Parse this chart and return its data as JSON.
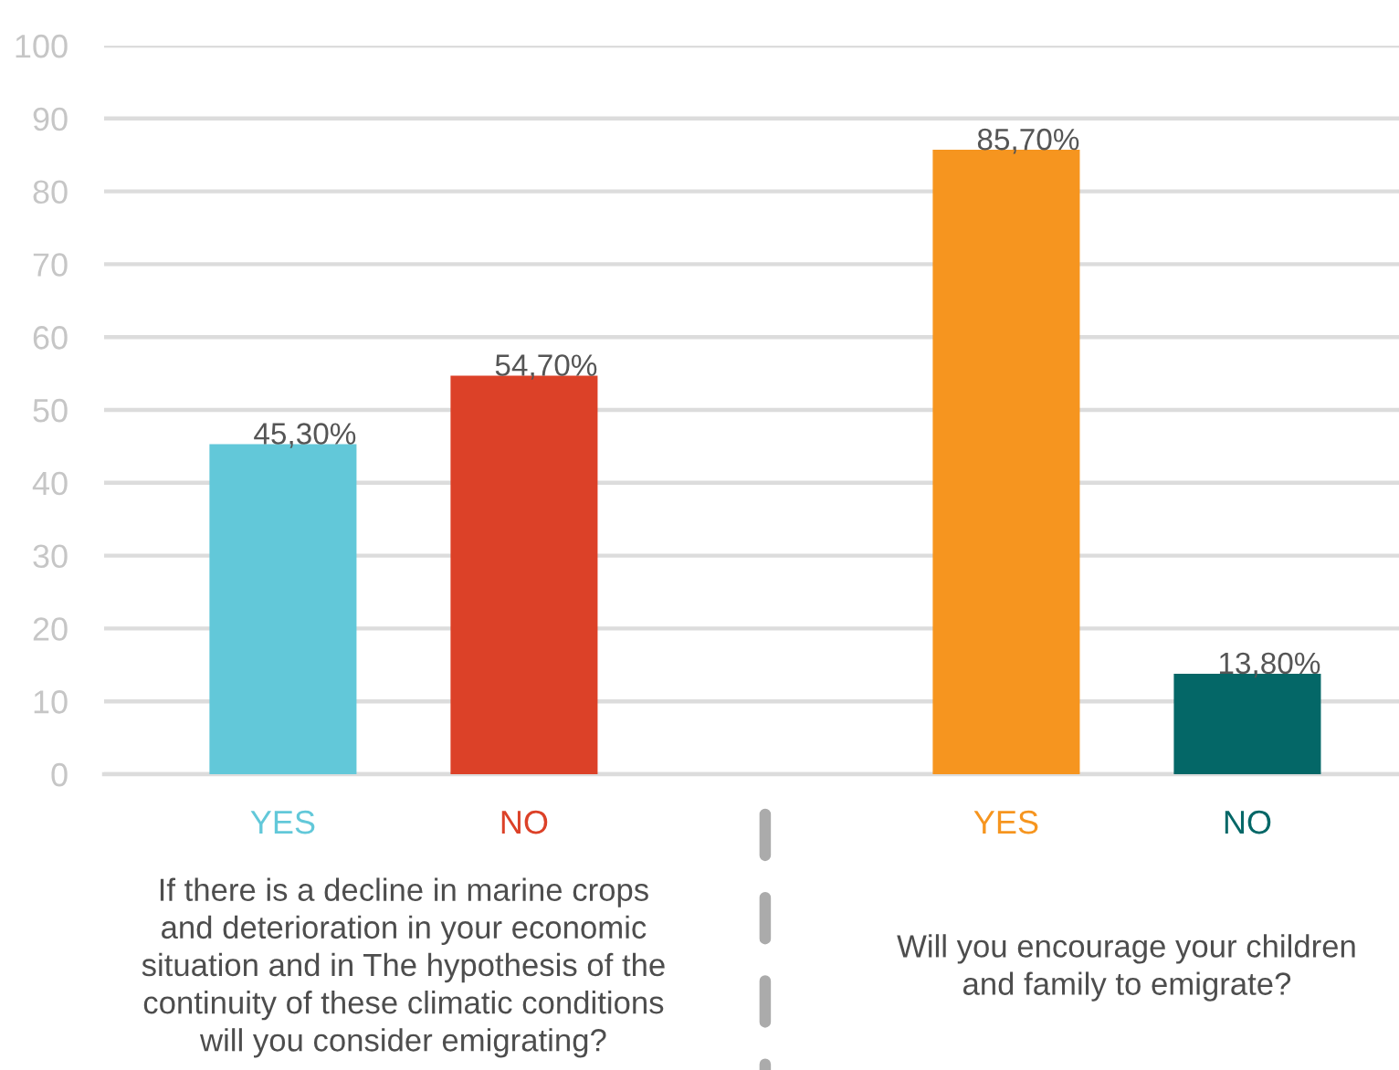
{
  "chart_data": {
    "type": "bar",
    "categories": [
      "YES",
      "NO",
      null,
      "YES",
      "NO"
    ],
    "values": [
      45.3,
      54.7,
      null,
      85.7,
      13.8
    ],
    "colors": [
      "#62c8d9",
      "#dc4128",
      null,
      "#f6951f",
      "#046767"
    ],
    "value_labels": [
      "45,30%",
      "54,70%",
      null,
      "85,70%",
      "13,80%"
    ],
    "ylim": [
      0,
      100
    ],
    "yticks": [
      0,
      10,
      20,
      30,
      40,
      50,
      60,
      70,
      80,
      90,
      100
    ],
    "grid": "y",
    "annotations": [
      "If there is a decline in marine crops and deterioration in your economic situation and in The hypothesis of the continuity of these climatic conditions will you consider emigrating?",
      "Will you encourage your children and family to emigrate?"
    ]
  }
}
